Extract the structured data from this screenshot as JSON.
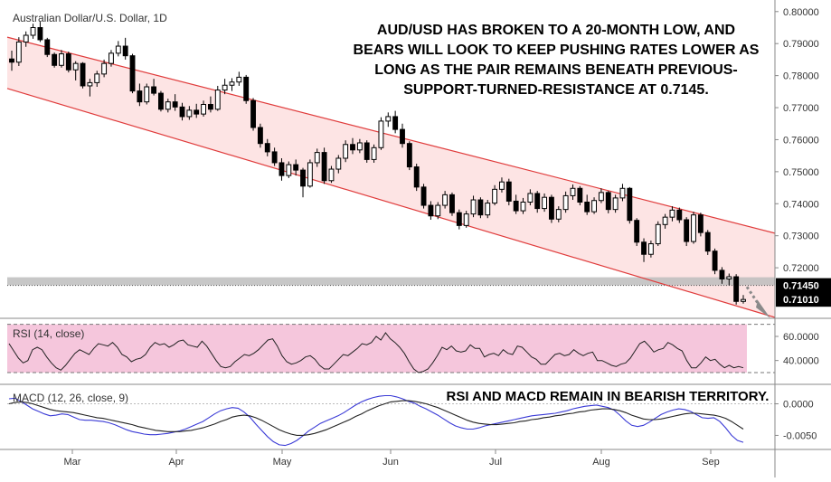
{
  "chart_title": "Australian Dollar/U.S. Dollar, 1D",
  "annotation_main": [
    "AUD/USD HAS BROKEN TO A 20-MONTH LOW, AND",
    "BEARS WILL LOOK TO KEEP PUSHING RATES LOWER AS",
    "LONG AS THE PAIR REMAINS BENEATH PREVIOUS-",
    "SUPPORT-TURNED-RESISTANCE AT 0.7145."
  ],
  "annotation_indicators": "RSI AND MACD REMAIN IN BEARISH TERRITORY.",
  "colors": {
    "channel_line": "#e03c3c",
    "channel_fill": "#fde4e4",
    "rsi_band": "#f5c6dc",
    "rsi_line": "#222222",
    "macd_line": "#3a3ad6",
    "signal_line": "#222222",
    "candle": "#000000",
    "support_zone": "#bdbdbd",
    "label_bg": "#000000",
    "label_fg": "#ffffff"
  },
  "chart_data": [
    {
      "type": "candlestick",
      "title": "Australian Dollar/U.S. Dollar, 1D",
      "x_labels": [
        "Mar",
        "Apr",
        "May",
        "Jun",
        "Jul",
        "Aug",
        "Sep"
      ],
      "y_ticks": [
        "0.80000",
        "0.79000",
        "0.78000",
        "0.77000",
        "0.76000",
        "0.75000",
        "0.74000",
        "0.73000",
        "0.72000"
      ],
      "ylim": [
        0.7045,
        0.8022
      ],
      "price_labels": [
        "0.71450",
        "0.71010"
      ],
      "support_resistance": 0.7145,
      "last_close": 0.7101,
      "channel": {
        "upper": {
          "start": [
            0,
            0.792
          ],
          "end": [
            1,
            0.7308
          ]
        },
        "lower": {
          "start": [
            0,
            0.776
          ],
          "end": [
            1,
            0.7045
          ]
        }
      },
      "candles": [
        [
          0.7852,
          0.7878,
          0.7815,
          0.7842
        ],
        [
          0.7842,
          0.792,
          0.783,
          0.7905
        ],
        [
          0.7905,
          0.7938,
          0.789,
          0.7926
        ],
        [
          0.7926,
          0.7962,
          0.7915,
          0.795
        ],
        [
          0.795,
          0.7968,
          0.7905,
          0.7912
        ],
        [
          0.7912,
          0.7918,
          0.7858,
          0.7866
        ],
        [
          0.7866,
          0.7872,
          0.7825,
          0.7832
        ],
        [
          0.7832,
          0.788,
          0.7825,
          0.7868
        ],
        [
          0.7868,
          0.7875,
          0.781,
          0.7818
        ],
        [
          0.7818,
          0.7845,
          0.7785,
          0.7838
        ],
        [
          0.7838,
          0.7842,
          0.776,
          0.7768
        ],
        [
          0.7768,
          0.779,
          0.7735,
          0.7778
        ],
        [
          0.7778,
          0.7815,
          0.7765,
          0.7805
        ],
        [
          0.7805,
          0.785,
          0.7795,
          0.7838
        ],
        [
          0.7838,
          0.788,
          0.7828,
          0.787
        ],
        [
          0.787,
          0.7908,
          0.786,
          0.7892
        ],
        [
          0.7892,
          0.7918,
          0.785,
          0.7862
        ],
        [
          0.7862,
          0.7868,
          0.7745,
          0.7752
        ],
        [
          0.7752,
          0.7775,
          0.7705,
          0.7718
        ],
        [
          0.7718,
          0.7775,
          0.771,
          0.7765
        ],
        [
          0.7765,
          0.779,
          0.7738,
          0.7745
        ],
        [
          0.7745,
          0.7752,
          0.7688,
          0.7695
        ],
        [
          0.7695,
          0.7728,
          0.7685,
          0.7718
        ],
        [
          0.7718,
          0.7742,
          0.769,
          0.7702
        ],
        [
          0.7702,
          0.7715,
          0.766,
          0.7672
        ],
        [
          0.7672,
          0.7705,
          0.7662,
          0.7692
        ],
        [
          0.7692,
          0.7712,
          0.7668,
          0.768
        ],
        [
          0.768,
          0.7722,
          0.7672,
          0.771
        ],
        [
          0.771,
          0.7735,
          0.7685,
          0.7695
        ],
        [
          0.7695,
          0.7768,
          0.769,
          0.7755
        ],
        [
          0.7755,
          0.779,
          0.7742,
          0.777
        ],
        [
          0.777,
          0.7792,
          0.7752,
          0.778
        ],
        [
          0.778,
          0.7812,
          0.7768,
          0.7795
        ],
        [
          0.7795,
          0.7802,
          0.7712,
          0.7722
        ],
        [
          0.7722,
          0.773,
          0.7628,
          0.7638
        ],
        [
          0.7638,
          0.765,
          0.7575,
          0.7588
        ],
        [
          0.7588,
          0.7602,
          0.7548,
          0.7562
        ],
        [
          0.7562,
          0.7575,
          0.7518,
          0.7528
        ],
        [
          0.7528,
          0.7542,
          0.7472,
          0.7488
        ],
        [
          0.7488,
          0.7532,
          0.748,
          0.7522
        ],
        [
          0.7522,
          0.7538,
          0.7488,
          0.7505
        ],
        [
          0.7505,
          0.7512,
          0.742,
          0.7455
        ],
        [
          0.7455,
          0.7538,
          0.745,
          0.7528
        ],
        [
          0.7528,
          0.7572,
          0.7515,
          0.756
        ],
        [
          0.756,
          0.7575,
          0.7462,
          0.7472
        ],
        [
          0.7472,
          0.7518,
          0.7465,
          0.7508
        ],
        [
          0.7508,
          0.7552,
          0.7495,
          0.7542
        ],
        [
          0.7542,
          0.7598,
          0.753,
          0.7585
        ],
        [
          0.7585,
          0.7605,
          0.7555,
          0.7568
        ],
        [
          0.7568,
          0.7602,
          0.7558,
          0.759
        ],
        [
          0.759,
          0.7598,
          0.7528,
          0.7538
        ],
        [
          0.7538,
          0.7585,
          0.7528,
          0.7575
        ],
        [
          0.7575,
          0.767,
          0.7568,
          0.7658
        ],
        [
          0.7658,
          0.7685,
          0.764,
          0.7672
        ],
        [
          0.7672,
          0.769,
          0.762,
          0.7632
        ],
        [
          0.7632,
          0.765,
          0.7575,
          0.7588
        ],
        [
          0.7588,
          0.7595,
          0.7505,
          0.7515
        ],
        [
          0.7515,
          0.7525,
          0.744,
          0.7452
        ],
        [
          0.7452,
          0.7462,
          0.7385,
          0.7395
        ],
        [
          0.7395,
          0.7408,
          0.735,
          0.7362
        ],
        [
          0.7362,
          0.7405,
          0.7352,
          0.7395
        ],
        [
          0.7395,
          0.744,
          0.7385,
          0.7428
        ],
        [
          0.7428,
          0.7435,
          0.7362,
          0.7372
        ],
        [
          0.7372,
          0.7382,
          0.732,
          0.7332
        ],
        [
          0.7332,
          0.7378,
          0.7325,
          0.7368
        ],
        [
          0.7368,
          0.7425,
          0.7358,
          0.7412
        ],
        [
          0.7412,
          0.742,
          0.7355,
          0.7365
        ],
        [
          0.7365,
          0.7412,
          0.7355,
          0.7402
        ],
        [
          0.7402,
          0.7458,
          0.7395,
          0.7445
        ],
        [
          0.7445,
          0.7482,
          0.7435,
          0.7468
        ],
        [
          0.7468,
          0.7478,
          0.7395,
          0.7408
        ],
        [
          0.7408,
          0.7428,
          0.7368,
          0.7378
        ],
        [
          0.7378,
          0.7418,
          0.7368,
          0.7405
        ],
        [
          0.7405,
          0.7445,
          0.7395,
          0.7432
        ],
        [
          0.7432,
          0.744,
          0.7372,
          0.7385
        ],
        [
          0.7385,
          0.7432,
          0.7375,
          0.742
        ],
        [
          0.742,
          0.7428,
          0.734,
          0.7352
        ],
        [
          0.7352,
          0.7392,
          0.7342,
          0.7382
        ],
        [
          0.7382,
          0.7438,
          0.7372,
          0.7425
        ],
        [
          0.7425,
          0.746,
          0.7412,
          0.7448
        ],
        [
          0.7448,
          0.7455,
          0.7395,
          0.7405
        ],
        [
          0.7405,
          0.7428,
          0.7365,
          0.7375
        ],
        [
          0.7375,
          0.742,
          0.7368,
          0.741
        ],
        [
          0.741,
          0.7448,
          0.7402,
          0.7435
        ],
        [
          0.7435,
          0.744,
          0.737,
          0.7382
        ],
        [
          0.7382,
          0.7428,
          0.7372,
          0.7418
        ],
        [
          0.7418,
          0.7462,
          0.7408,
          0.7448
        ],
        [
          0.7448,
          0.7452,
          0.7338,
          0.7348
        ],
        [
          0.7348,
          0.7355,
          0.7268,
          0.728
        ],
        [
          0.728,
          0.7292,
          0.7218,
          0.7242
        ],
        [
          0.7242,
          0.7285,
          0.7232,
          0.7275
        ],
        [
          0.7275,
          0.7345,
          0.7268,
          0.7335
        ],
        [
          0.7335,
          0.7368,
          0.7322,
          0.7358
        ],
        [
          0.7358,
          0.7392,
          0.7345,
          0.738
        ],
        [
          0.738,
          0.7388,
          0.734,
          0.735
        ],
        [
          0.735,
          0.7358,
          0.7268,
          0.7282
        ],
        [
          0.7282,
          0.7375,
          0.7275,
          0.7365
        ],
        [
          0.7365,
          0.7372,
          0.7298,
          0.731
        ],
        [
          0.731,
          0.7318,
          0.724,
          0.7252
        ],
        [
          0.7252,
          0.726,
          0.718,
          0.7192
        ],
        [
          0.7192,
          0.7202,
          0.715,
          0.7165
        ],
        [
          0.7165,
          0.7182,
          0.7145,
          0.7172
        ],
        [
          0.7172,
          0.718,
          0.7085,
          0.7095
        ],
        [
          0.7095,
          0.7115,
          0.7088,
          0.7101
        ]
      ]
    },
    {
      "type": "line",
      "title": "RSI (14, close)",
      "y_ticks": [
        "60.0000",
        "40.0000"
      ],
      "ylim": [
        24,
        72
      ],
      "band": [
        30,
        70
      ],
      "series": [
        {
          "values": [
            54,
            48,
            42,
            38,
            40,
            49,
            51,
            49,
            43,
            38,
            34,
            32,
            36,
            41,
            46,
            49,
            47,
            45,
            50,
            54,
            53,
            52,
            55,
            51,
            45,
            43,
            39,
            41,
            42,
            45,
            51,
            55,
            53,
            54,
            51,
            53,
            56,
            57,
            53,
            52,
            51,
            56,
            52,
            46,
            40,
            35,
            34,
            35,
            39,
            42,
            45,
            44,
            46,
            49,
            53,
            57,
            58,
            52,
            44,
            39,
            37,
            38,
            40,
            43,
            44,
            41,
            36,
            33,
            33,
            37,
            41,
            45,
            44,
            47,
            50,
            54,
            53,
            55,
            60,
            57,
            63,
            58,
            55,
            51,
            46,
            39,
            33,
            30,
            31,
            33,
            38,
            44,
            51,
            49,
            52,
            48,
            47,
            48,
            53,
            50,
            50,
            43,
            45,
            46,
            44,
            49,
            46,
            45,
            52,
            51,
            47,
            43,
            41,
            37,
            37,
            41,
            45,
            46,
            44,
            45,
            49,
            46,
            44,
            46,
            47,
            40,
            40,
            38,
            36,
            35,
            37,
            38,
            42,
            48,
            54,
            56,
            52,
            47,
            49,
            50,
            55,
            53,
            50,
            48,
            40,
            34,
            34,
            38,
            43,
            40,
            41,
            37,
            34,
            36,
            34,
            35,
            34
          ]
        }
      ]
    },
    {
      "type": "line",
      "title": "MACD (12, 26, close, 9)",
      "y_ticks": [
        "0.0000",
        "-0.0050"
      ],
      "ylim": [
        -0.0068,
        0.0028
      ],
      "series": [
        {
          "values": [
            0.0008,
            0.0009,
            0.0004,
            -0.0002,
            -0.0008,
            -0.0012,
            -0.0016,
            -0.0019,
            -0.0018,
            -0.0016,
            -0.0017,
            -0.0021,
            -0.0025,
            -0.0026,
            -0.0026,
            -0.0027,
            -0.0028,
            -0.003,
            -0.0033,
            -0.0037,
            -0.0041,
            -0.0044,
            -0.0046,
            -0.0048,
            -0.0049,
            -0.0049,
            -0.0048,
            -0.0047,
            -0.0045,
            -0.0043,
            -0.004,
            -0.0036,
            -0.0032,
            -0.0028,
            -0.0022,
            -0.0016,
            -0.0011,
            -0.0008,
            -0.0006,
            -0.0007,
            -0.0013,
            -0.0021,
            -0.0032,
            -0.0042,
            -0.0052,
            -0.006,
            -0.0065,
            -0.0066,
            -0.0063,
            -0.0058,
            -0.0051,
            -0.0043,
            -0.0037,
            -0.0031,
            -0.0027,
            -0.0023,
            -0.0019,
            -0.0014,
            -0.0008,
            -0.0002,
            0.0003,
            0.0007,
            0.001,
            0.0012,
            0.0013,
            0.0013,
            0.0011,
            0.0008,
            0.0004,
            0.0001,
            -0.0004,
            -0.0008,
            -0.0013,
            -0.0018,
            -0.0024,
            -0.003,
            -0.0035,
            -0.0038,
            -0.004,
            -0.004,
            -0.0038,
            -0.0035,
            -0.0033,
            -0.0031,
            -0.0029,
            -0.0027,
            -0.0025,
            -0.0023,
            -0.0021,
            -0.0019,
            -0.0018,
            -0.0017,
            -0.0016,
            -0.0015,
            -0.0013,
            -0.0011,
            -0.0008,
            -0.0006,
            -0.0004,
            -0.0003,
            -0.0002,
            -0.0004,
            -0.0006,
            -0.001,
            -0.0018,
            -0.0027,
            -0.0034,
            -0.0036,
            -0.0034,
            -0.0029,
            -0.0023,
            -0.0017,
            -0.0013,
            -0.001,
            -0.0008,
            -0.0009,
            -0.0012,
            -0.0017,
            -0.0022,
            -0.0023,
            -0.0022,
            -0.0028,
            -0.0038,
            -0.005,
            -0.0058,
            -0.0061
          ]
        },
        {
          "values": [
            0.0,
            0.0002,
            0.0003,
            0.0002,
            0.0,
            -0.0003,
            -0.0006,
            -0.0009,
            -0.0011,
            -0.0012,
            -0.0013,
            -0.0014,
            -0.0016,
            -0.0018,
            -0.002,
            -0.0022,
            -0.0023,
            -0.0025,
            -0.0027,
            -0.0029,
            -0.0031,
            -0.0033,
            -0.0036,
            -0.0038,
            -0.004,
            -0.0042,
            -0.0043,
            -0.0044,
            -0.0044,
            -0.0044,
            -0.0043,
            -0.0042,
            -0.004,
            -0.0038,
            -0.0035,
            -0.0032,
            -0.0028,
            -0.0025,
            -0.0021,
            -0.0019,
            -0.0018,
            -0.0019,
            -0.0022,
            -0.0026,
            -0.0031,
            -0.0036,
            -0.0041,
            -0.0045,
            -0.0048,
            -0.005,
            -0.005,
            -0.0049,
            -0.0047,
            -0.0044,
            -0.0041,
            -0.0037,
            -0.0033,
            -0.0029,
            -0.0025,
            -0.002,
            -0.0016,
            -0.0011,
            -0.0007,
            -0.0003,
            0.0,
            0.0003,
            0.0004,
            0.0005,
            0.0005,
            0.0004,
            0.0002,
            0.0,
            -0.0003,
            -0.0006,
            -0.001,
            -0.0014,
            -0.0018,
            -0.0022,
            -0.0026,
            -0.0029,
            -0.0031,
            -0.0032,
            -0.0033,
            -0.0033,
            -0.0032,
            -0.0031,
            -0.003,
            -0.0028,
            -0.0027,
            -0.0025,
            -0.0024,
            -0.0022,
            -0.0021,
            -0.0019,
            -0.0018,
            -0.0016,
            -0.0015,
            -0.0013,
            -0.0012,
            -0.001,
            -0.0009,
            -0.0008,
            -0.0008,
            -0.0009,
            -0.0011,
            -0.0014,
            -0.0018,
            -0.0021,
            -0.0024,
            -0.0025,
            -0.0025,
            -0.0024,
            -0.0022,
            -0.002,
            -0.0018,
            -0.0016,
            -0.0015,
            -0.0015,
            -0.0016,
            -0.0017,
            -0.0018,
            -0.002,
            -0.0023,
            -0.0028,
            -0.0034,
            -0.004
          ]
        }
      ]
    }
  ]
}
